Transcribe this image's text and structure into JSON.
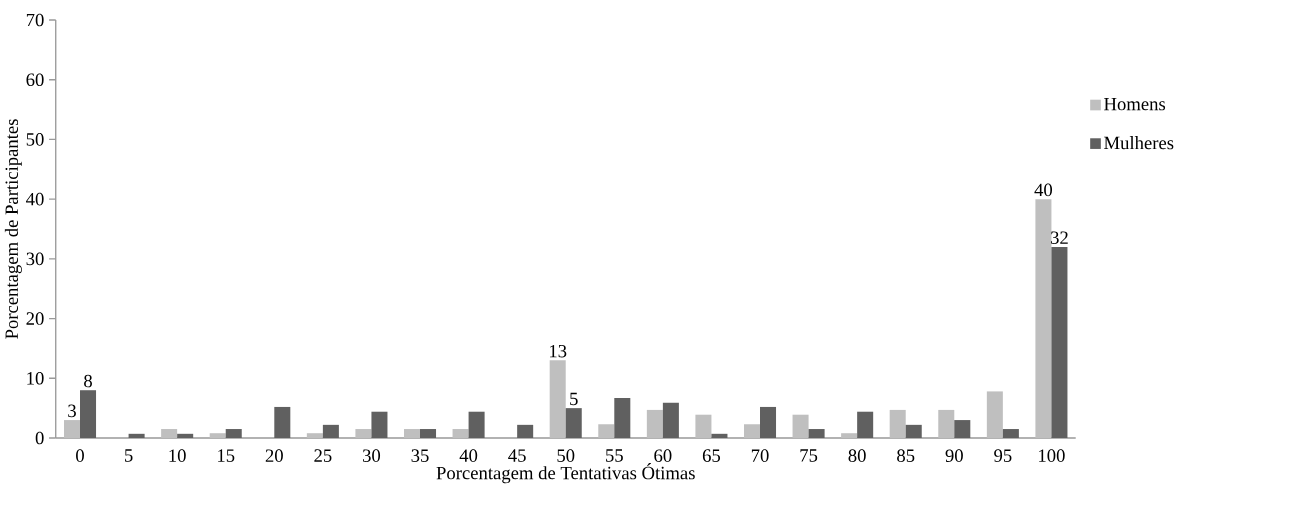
{
  "chart_data": {
    "type": "bar",
    "xlabel": "Porcentagem de Tentativas Ótimas",
    "ylabel": "Porcentagem de Participantes",
    "categories": [
      "0",
      "5",
      "10",
      "15",
      "20",
      "25",
      "30",
      "35",
      "40",
      "45",
      "50",
      "55",
      "60",
      "65",
      "70",
      "75",
      "80",
      "85",
      "90",
      "95",
      "100"
    ],
    "series": [
      {
        "name": "Homens",
        "color": "#bfbfbf",
        "values": [
          3,
          0,
          1.5,
          0.8,
          0,
          0.8,
          1.5,
          1.5,
          1.5,
          0,
          13,
          2.3,
          4.7,
          3.9,
          2.3,
          3.9,
          0.8,
          4.7,
          4.7,
          7.8,
          40
        ],
        "value_labels": [
          "3",
          null,
          null,
          null,
          null,
          null,
          null,
          null,
          null,
          null,
          "13",
          null,
          null,
          null,
          null,
          null,
          null,
          null,
          null,
          null,
          "40"
        ]
      },
      {
        "name": "Mulheres",
        "color": "#606060",
        "values": [
          8,
          0.7,
          0.7,
          1.5,
          5.2,
          2.2,
          4.4,
          1.5,
          4.4,
          2.2,
          5,
          6.7,
          5.9,
          0.7,
          5.2,
          1.5,
          4.4,
          2.2,
          3.0,
          1.5,
          32
        ],
        "value_labels": [
          "8",
          null,
          null,
          null,
          null,
          null,
          null,
          null,
          null,
          null,
          "5",
          null,
          null,
          null,
          null,
          null,
          null,
          null,
          null,
          null,
          "32"
        ]
      }
    ],
    "ylim": [
      0,
      70
    ],
    "yticks": [
      0,
      10,
      20,
      30,
      40,
      50,
      60,
      70
    ],
    "grid": false,
    "legend": "right"
  }
}
